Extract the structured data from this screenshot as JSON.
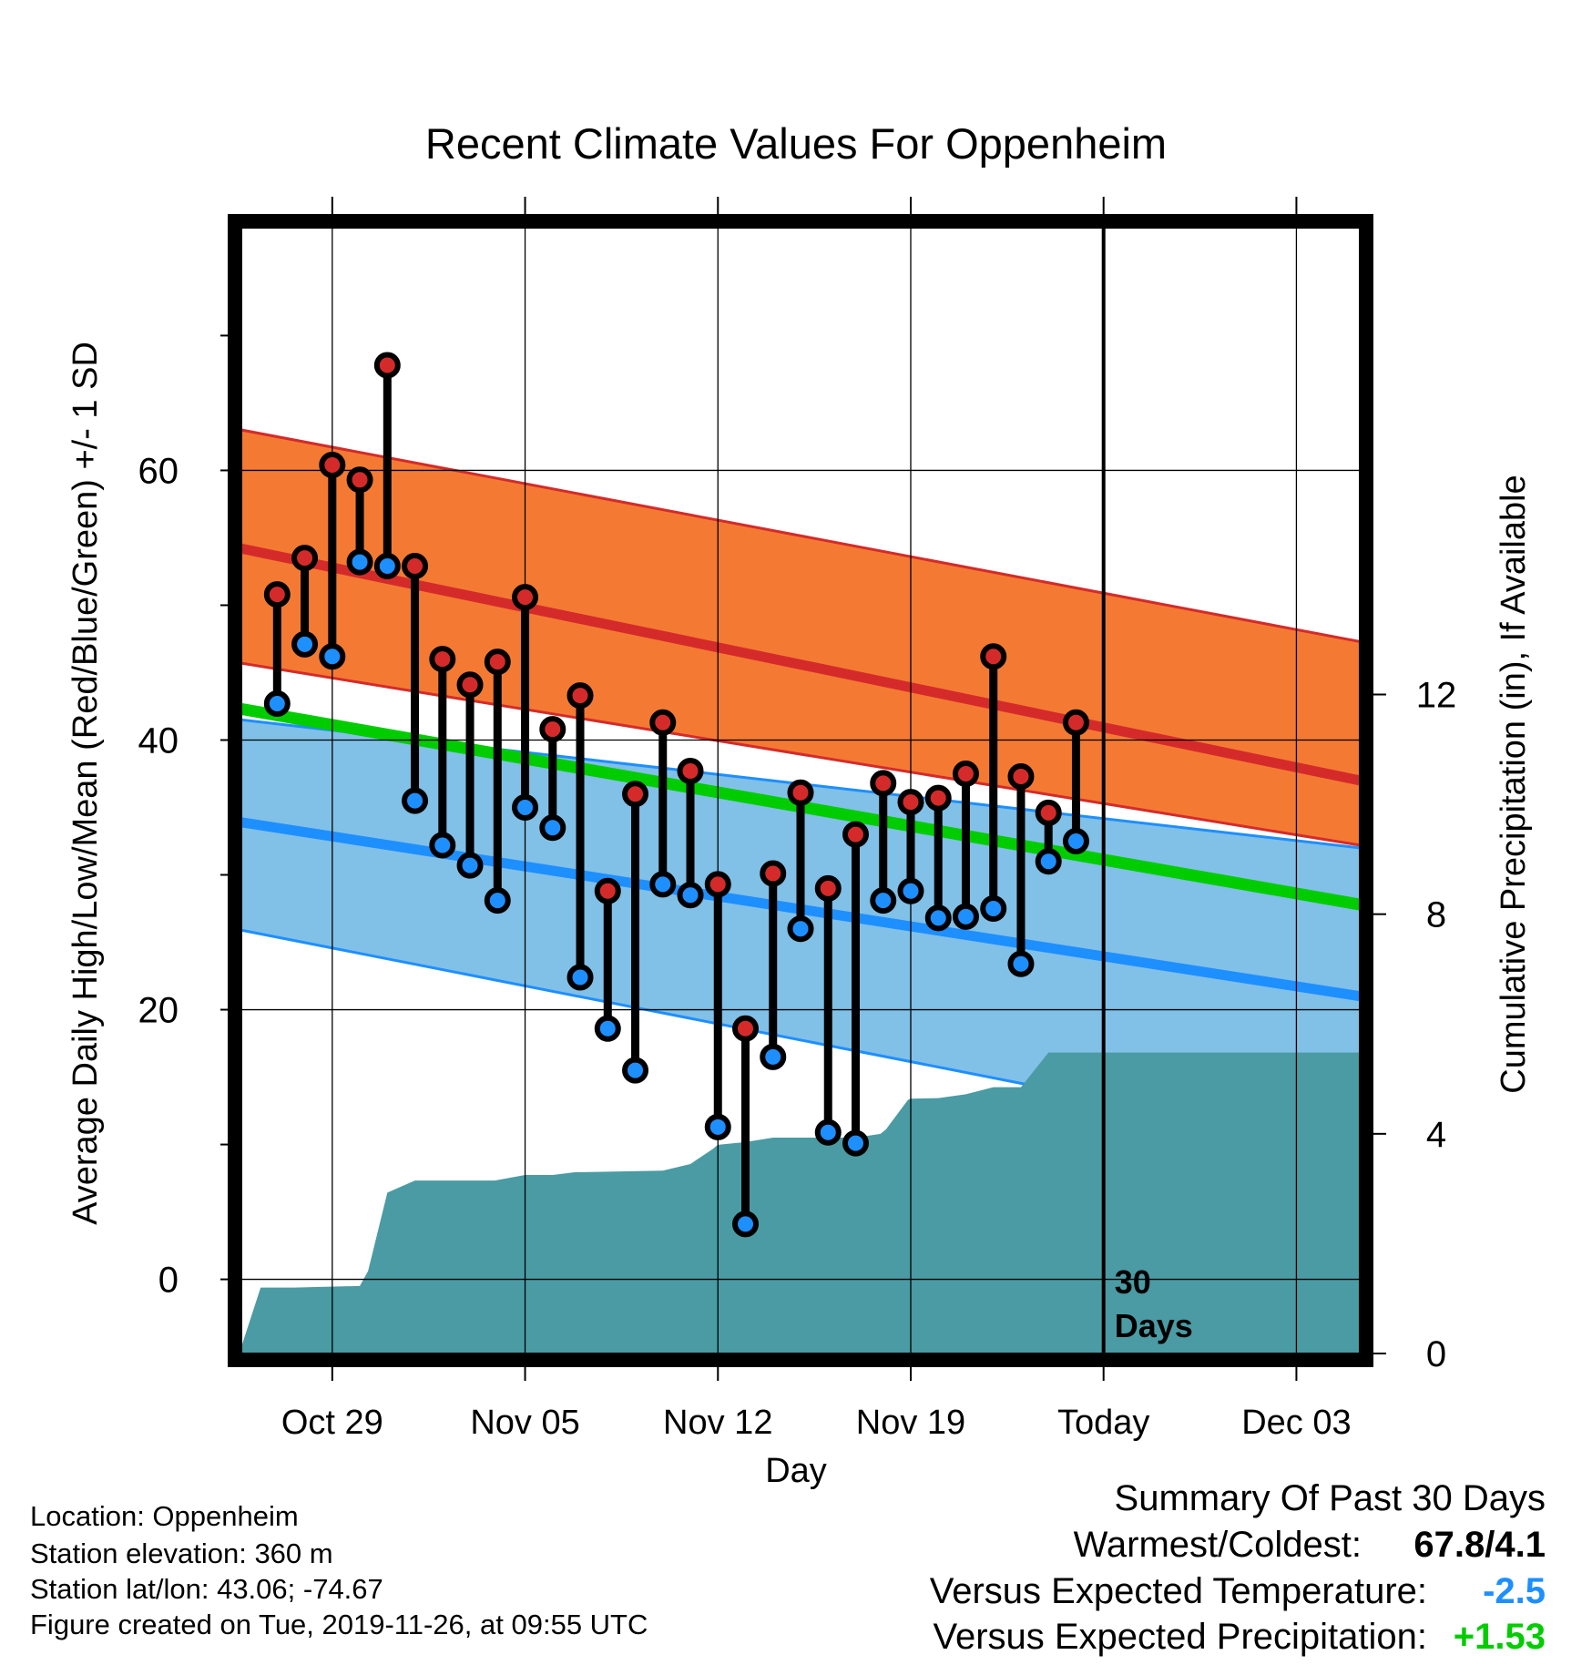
{
  "chart_data": {
    "type": "line",
    "title": "Recent Climate Values For Oppenheim",
    "xlabel": "Day",
    "ylabel": "Average Daily High/Low/Mean (Red/Blue/Green) +/- 1 SD",
    "y2label": "Cumulative Precipitation (in), If Available",
    "x_range": [
      -3.3,
      37.3
    ],
    "ylim": [
      -5.5,
      78
    ],
    "y2lim": [
      0,
      20.5
    ],
    "x_ticks": [
      {
        "day": 0,
        "label": "Oct 29"
      },
      {
        "day": 7,
        "label": "Nov 05"
      },
      {
        "day": 14,
        "label": "Nov 12"
      },
      {
        "day": 21,
        "label": "Nov 19"
      },
      {
        "day": 28,
        "label": "Today"
      },
      {
        "day": 35,
        "label": "Dec 03"
      }
    ],
    "y_ticks": [
      0,
      20,
      40,
      60
    ],
    "y_minor_ticks": [
      10,
      30,
      50,
      70
    ],
    "y2_ticks": [
      0,
      4,
      8,
      12
    ],
    "grid": true,
    "today_day": 28,
    "today_annotation": [
      "30",
      "Days"
    ],
    "normals": {
      "high_upper": {
        "start": 63.0,
        "end": 47.3
      },
      "high_mean": {
        "start": 54.2,
        "end": 37.0
      },
      "high_lower": {
        "start": 45.7,
        "end": 32.2
      },
      "mean": {
        "start": 42.3,
        "end": 27.8
      },
      "low_upper": {
        "start": 41.5,
        "end": 32.0
      },
      "low_mean": {
        "start": 33.9,
        "end": 21.0
      },
      "low_lower": {
        "start": 25.9,
        "end": 9.6
      }
    },
    "observations": {
      "days": [
        -2,
        -1,
        0,
        1,
        2,
        3,
        4,
        5,
        6,
        7,
        8,
        9,
        10,
        11,
        12,
        13,
        14,
        15,
        16,
        17,
        18,
        19,
        20,
        21,
        22,
        23,
        24,
        25,
        26,
        27
      ],
      "high": [
        50.8,
        53.5,
        60.4,
        59.3,
        67.8,
        52.9,
        46.0,
        44.1,
        45.8,
        50.6,
        40.8,
        43.3,
        28.8,
        36.0,
        41.3,
        37.7,
        29.3,
        18.6,
        30.1,
        36.1,
        29.0,
        33.0,
        36.8,
        35.4,
        35.7,
        37.5,
        46.2,
        37.3,
        34.6,
        41.3
      ],
      "low": [
        42.7,
        47.1,
        46.2,
        53.2,
        52.9,
        35.5,
        32.2,
        30.7,
        28.1,
        35.0,
        33.5,
        22.4,
        18.6,
        15.5,
        29.3,
        28.5,
        11.3,
        4.1,
        16.5,
        26.0,
        10.9,
        10.1,
        28.1,
        28.8,
        26.8,
        26.9,
        27.5,
        23.4,
        31.0,
        32.5
      ]
    },
    "precipitation": {
      "days": [
        -3.3,
        -2.6,
        -1.4,
        1.0,
        1.3,
        2.0,
        3.0,
        3.6,
        5.9,
        7.0,
        8.0,
        8.8,
        12.0,
        13.0,
        13.8,
        14.0,
        15.0,
        16.0,
        17.0,
        18.0,
        19.0,
        19.9,
        20.1,
        20.9,
        21.0,
        22.0,
        23.0,
        24.0,
        25.0,
        26.0,
        28.0,
        37.3
      ],
      "cumulative": [
        0.12,
        1.2,
        1.2,
        1.23,
        1.5,
        2.93,
        3.15,
        3.15,
        3.15,
        3.25,
        3.25,
        3.3,
        3.33,
        3.45,
        3.72,
        3.8,
        3.85,
        3.93,
        3.93,
        3.93,
        3.93,
        4.0,
        4.08,
        4.62,
        4.64,
        4.65,
        4.72,
        4.85,
        4.85,
        5.48,
        5.48,
        5.48
      ]
    },
    "colors": {
      "high_band": "#f47a33",
      "high_line": "#d42b2a",
      "overlap_band": "#8e1518",
      "low_band": "#81c0e7",
      "low_line": "#1e8fff",
      "mean_line": "#00cc00",
      "precip_area": "#4a9ba3",
      "high_marker": "#d42b2a",
      "low_marker": "#1e8fff"
    }
  },
  "footer": {
    "location": "Location: Oppenheim",
    "elevation": "Station elevation: 360 m",
    "latlon": "Station lat/lon: 43.06; -74.67",
    "created": "Figure created on Tue, 2019-11-26, at 09:55 UTC"
  },
  "summary": {
    "title": "Summary Of Past 30 Days",
    "warmest_coldest_label": "Warmest/Coldest:",
    "warmest_coldest_value": "67.8/4.1",
    "temp_label": "Versus Expected Temperature:",
    "temp_value": "-2.5",
    "temp_color": "#1e8fff",
    "precip_label": "Versus Expected Precipitation:",
    "precip_value": "+1.53",
    "precip_color": "#00cc00"
  }
}
